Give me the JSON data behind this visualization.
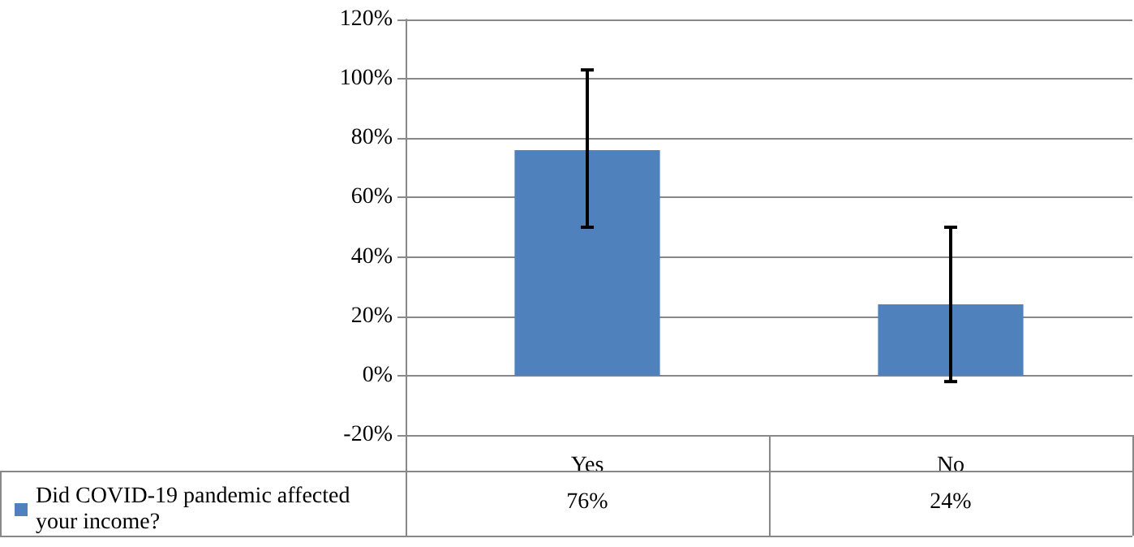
{
  "chart_data": {
    "type": "bar",
    "categories": [
      "Yes",
      "No"
    ],
    "series": [
      {
        "name": "Did COVID-19 pandemic affected your income?",
        "color": "#4f81bd",
        "values": [
          76,
          24
        ],
        "errors": [
          [
            50,
            103
          ],
          [
            -2,
            50
          ]
        ],
        "value_labels": [
          "76%",
          "24%"
        ]
      }
    ],
    "ylim": [
      -20,
      120
    ],
    "yticks": [
      {
        "value": -20,
        "label": "-20%"
      },
      {
        "value": 0,
        "label": "0%"
      },
      {
        "value": 20,
        "label": "20%"
      },
      {
        "value": 40,
        "label": "40%"
      },
      {
        "value": 60,
        "label": "60%"
      },
      {
        "value": 80,
        "label": "80%"
      },
      {
        "value": 100,
        "label": "100%"
      },
      {
        "value": 120,
        "label": "120%"
      }
    ],
    "grid": "y",
    "legend": "bottom"
  }
}
